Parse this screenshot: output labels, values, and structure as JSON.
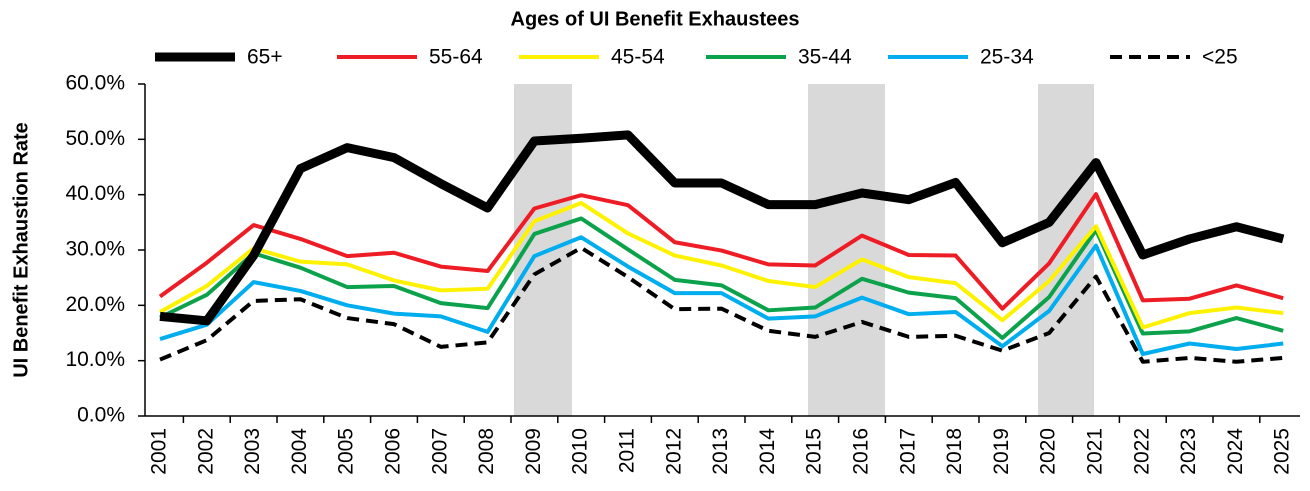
{
  "chart_data": {
    "type": "line",
    "title": "Ages of UI Benefit Exhaustees",
    "y_label": "UI Benefit Exhaustion Rate",
    "categories": [
      "2001",
      "2002",
      "2003",
      "2004",
      "2005",
      "2006",
      "2007",
      "2008",
      "2009",
      "2010",
      "2011",
      "2012",
      "2013",
      "2014",
      "2015",
      "2016",
      "2017",
      "2018",
      "2019",
      "2020",
      "2021",
      "2022",
      "2023",
      "2024",
      "2025"
    ],
    "ylim": [
      0,
      60
    ],
    "yticks": [
      {
        "value": 0,
        "label": "0.0%"
      },
      {
        "value": 10,
        "label": "10.0%"
      },
      {
        "value": 20,
        "label": "20.0%"
      },
      {
        "value": 30,
        "label": "30.0%"
      },
      {
        "value": 40,
        "label": "40.0%"
      },
      {
        "value": 50,
        "label": "50.0%"
      },
      {
        "value": 60,
        "label": "60.0%"
      }
    ],
    "legend": "top",
    "series": [
      {
        "name": "65+",
        "color": "#000000",
        "values": [
          18,
          17.2,
          29,
          44.7,
          48.5,
          46.7,
          42,
          37.6,
          49.7,
          50.2,
          50.8,
          42.1,
          42.1,
          38.2,
          38.2,
          40.3,
          39.1,
          42.2,
          31.3,
          35,
          45.8,
          29.1,
          32,
          34.2,
          32
        ]
      },
      {
        "name": "55-64",
        "color": "#ee1c25",
        "values": [
          21.6,
          27.7,
          34.5,
          32,
          28.9,
          29.5,
          27,
          26.2,
          37.5,
          39.9,
          38.1,
          31.4,
          29.9,
          27.4,
          27.2,
          32.6,
          29.1,
          29,
          19.4,
          27.6,
          40.1,
          20.9,
          21.2,
          23.6,
          21.3
        ]
      },
      {
        "name": "45-54",
        "color": "#fff200",
        "values": [
          18.8,
          23.5,
          30.3,
          27.9,
          27.4,
          24.5,
          22.7,
          23,
          35.2,
          38.5,
          33,
          29,
          27.2,
          24.4,
          23.3,
          28.3,
          25.1,
          24,
          17.3,
          24.4,
          34.3,
          16,
          18.6,
          19.6,
          18.6
        ]
      },
      {
        "name": "35-44",
        "color": "#0ca24b",
        "values": [
          17.8,
          21.9,
          29.4,
          26.8,
          23.3,
          23.5,
          20.4,
          19.5,
          32.9,
          35.7,
          30.1,
          24.6,
          23.6,
          19.1,
          19.6,
          24.8,
          22.3,
          21.3,
          14.1,
          21.5,
          33.6,
          14.9,
          15.3,
          17.7,
          15.4
        ]
      },
      {
        "name": "25-34",
        "color": "#00adee",
        "values": [
          13.9,
          16.5,
          24.2,
          22.6,
          20,
          18.5,
          18,
          15.2,
          28.9,
          32.3,
          27,
          22.2,
          22.2,
          17.6,
          18,
          21.4,
          18.4,
          18.8,
          12.6,
          19,
          30.8,
          11.2,
          13.1,
          12.1,
          13.1
        ]
      },
      {
        "name": "<25",
        "color": "#000000",
        "linestyle": "dashed",
        "values": [
          10.2,
          13.7,
          20.8,
          21.1,
          17.7,
          16.6,
          12.5,
          13.3,
          25.6,
          30.4,
          25.1,
          19.3,
          19.4,
          15.4,
          14.3,
          17,
          14.3,
          14.5,
          11.8,
          15,
          25.2,
          9.8,
          10.5,
          9.8,
          10.5
        ]
      }
    ]
  }
}
